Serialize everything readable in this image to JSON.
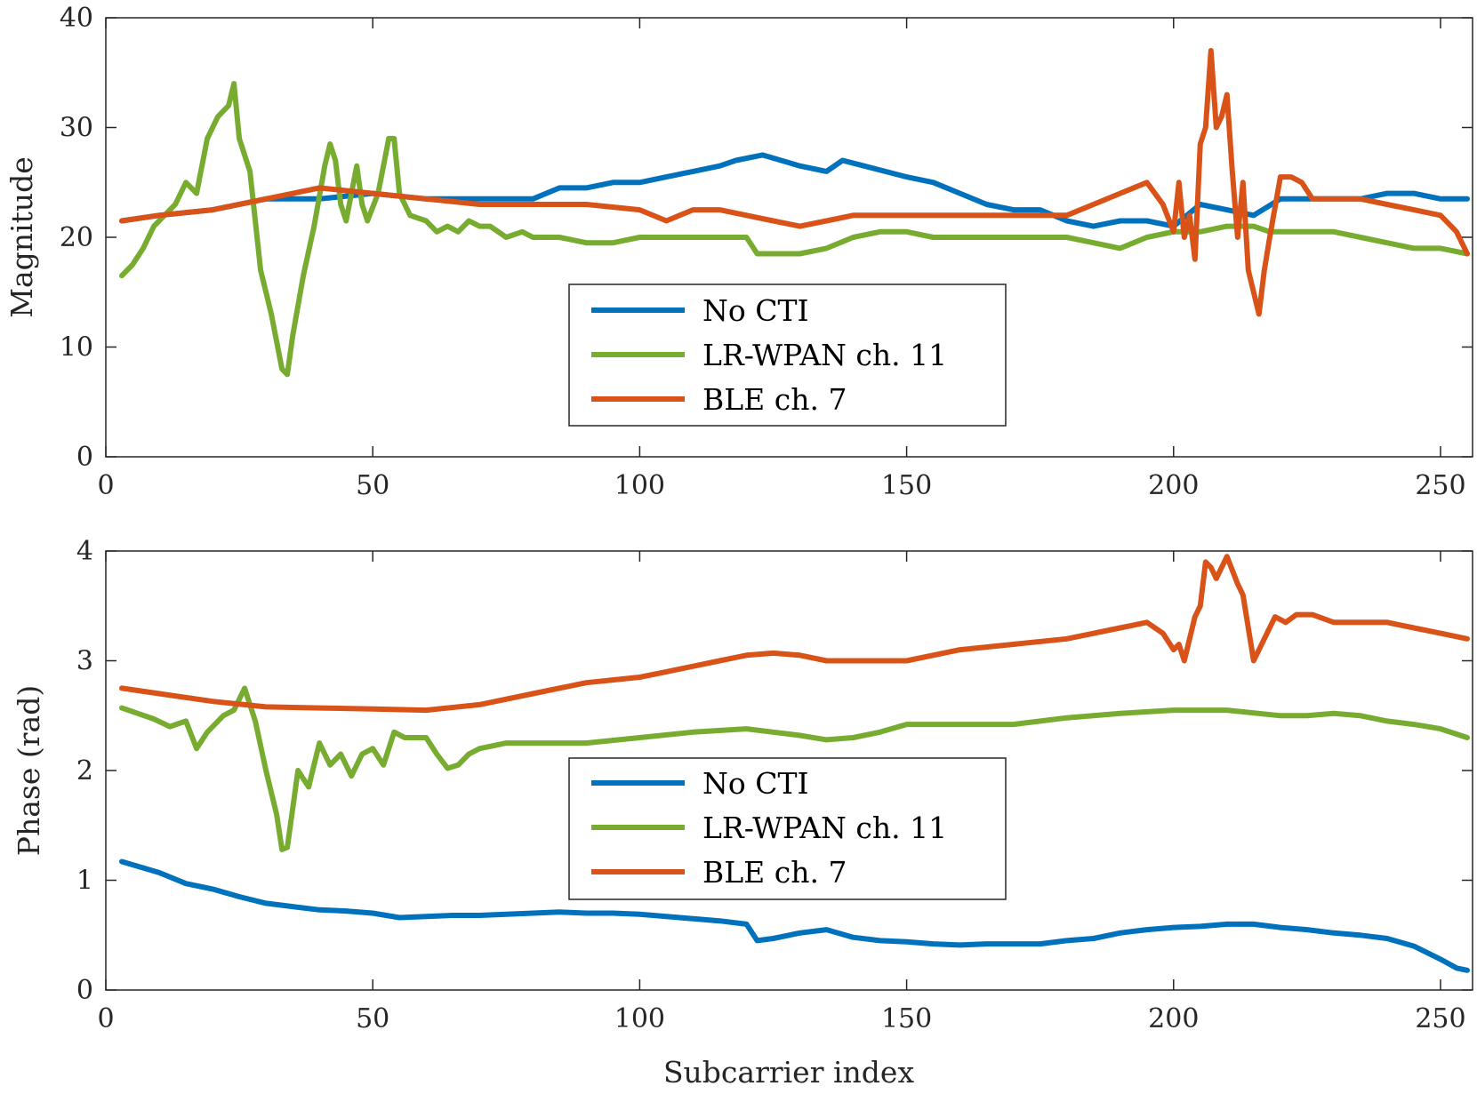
{
  "colors": {
    "no_cti": "#0072BD",
    "lr_wpan": "#77AC30",
    "ble": "#D95319"
  },
  "chart_data": [
    {
      "type": "line",
      "ylabel": "Magnitude",
      "xlabel": "",
      "xlim": [
        0,
        256
      ],
      "ylim": [
        0,
        40
      ],
      "xticks": [
        0,
        50,
        100,
        150,
        200,
        250
      ],
      "yticks": [
        0,
        10,
        20,
        30,
        40
      ],
      "xtick_labels": [
        "0",
        "50",
        "100",
        "150",
        "200",
        "250"
      ],
      "ytick_labels": [
        "0",
        "10",
        "20",
        "30",
        "40"
      ],
      "legend_position": "center-bottom",
      "series": [
        {
          "name": "No CTI",
          "color": "#0072BD",
          "x": [
            3,
            10,
            20,
            30,
            40,
            50,
            60,
            70,
            80,
            85,
            90,
            95,
            100,
            105,
            110,
            115,
            118,
            123,
            130,
            135,
            138,
            142,
            146,
            150,
            155,
            160,
            165,
            170,
            175,
            180,
            185,
            190,
            195,
            200,
            205,
            210,
            215,
            220,
            225,
            230,
            235,
            240,
            245,
            250,
            255
          ],
          "y": [
            21.5,
            22,
            22.5,
            23.5,
            23.5,
            24,
            23.5,
            23.5,
            23.5,
            24.5,
            24.5,
            25,
            25,
            25.5,
            26,
            26.5,
            27,
            27.5,
            26.5,
            26,
            27,
            26.5,
            26,
            25.5,
            25,
            24,
            23,
            22.5,
            22.5,
            21.5,
            21,
            21.5,
            21.5,
            21,
            23,
            22.5,
            22,
            23.5,
            23.5,
            23.5,
            23.5,
            24,
            24,
            23.5,
            23.5
          ]
        },
        {
          "name": "LR-WPAN ch. 11",
          "color": "#77AC30",
          "x": [
            3,
            5,
            7,
            9,
            11,
            13,
            15,
            17,
            19,
            21,
            23,
            24,
            25,
            27,
            29,
            31,
            33,
            34,
            35,
            37,
            39,
            41,
            42,
            43,
            44,
            45,
            47,
            48,
            49,
            51,
            53,
            54,
            55,
            57,
            60,
            62,
            64,
            66,
            68,
            70,
            72,
            75,
            78,
            80,
            85,
            90,
            95,
            100,
            110,
            120,
            122,
            125,
            130,
            135,
            140,
            145,
            150,
            155,
            160,
            165,
            170,
            175,
            180,
            185,
            190,
            195,
            200,
            205,
            210,
            215,
            218,
            222,
            226,
            230,
            235,
            240,
            245,
            250,
            255
          ],
          "y": [
            16.5,
            17.5,
            19,
            21,
            22,
            23,
            25,
            24,
            29,
            31,
            32,
            34,
            29,
            26,
            17,
            13,
            8,
            7.5,
            11,
            16.5,
            21,
            26.5,
            28.5,
            27,
            23,
            21.5,
            26.5,
            23,
            21.5,
            24,
            29,
            29,
            24,
            22,
            21.5,
            20.5,
            21,
            20.5,
            21.5,
            21,
            21,
            20,
            20.5,
            20,
            20,
            19.5,
            19.5,
            20,
            20,
            20,
            18.5,
            18.5,
            18.5,
            19,
            20,
            20.5,
            20.5,
            20,
            20,
            20,
            20,
            20,
            20,
            19.5,
            19,
            20,
            20.5,
            20.5,
            21,
            21,
            20.5,
            20.5,
            20.5,
            20.5,
            20,
            19.5,
            19,
            19,
            18.5
          ]
        },
        {
          "name": "BLE ch. 7",
          "color": "#D95319",
          "x": [
            3,
            10,
            20,
            30,
            40,
            50,
            60,
            70,
            80,
            90,
            100,
            105,
            110,
            115,
            120,
            125,
            130,
            135,
            140,
            145,
            150,
            155,
            160,
            165,
            170,
            175,
            180,
            185,
            190,
            195,
            198,
            200,
            201,
            202,
            203,
            204,
            205,
            206,
            207,
            208,
            209,
            210,
            211,
            212,
            213,
            214,
            215,
            216,
            217,
            218,
            220,
            222,
            224,
            226,
            230,
            235,
            240,
            245,
            250,
            253,
            255
          ],
          "y": [
            21.5,
            22,
            22.5,
            23.5,
            24.5,
            24,
            23.5,
            23,
            23,
            23,
            22.5,
            21.5,
            22.5,
            22.5,
            22,
            21.5,
            21,
            21.5,
            22,
            22,
            22,
            22,
            22,
            22,
            22,
            22,
            22,
            23,
            24,
            25,
            23,
            20.5,
            25,
            20,
            22,
            18,
            28.5,
            30,
            37,
            30,
            31,
            33,
            26,
            20,
            25,
            17,
            15,
            13,
            17,
            20,
            25.5,
            25.5,
            25,
            23.5,
            23.5,
            23.5,
            23,
            22.5,
            22,
            20.5,
            18.5
          ]
        }
      ]
    },
    {
      "type": "line",
      "ylabel": "Phase (rad)",
      "xlabel": "Subcarrier index",
      "xlim": [
        0,
        256
      ],
      "ylim": [
        0,
        4
      ],
      "xticks": [
        0,
        50,
        100,
        150,
        200,
        250
      ],
      "yticks": [
        0,
        1,
        2,
        3,
        4
      ],
      "xtick_labels": [
        "0",
        "50",
        "100",
        "150",
        "200",
        "250"
      ],
      "ytick_labels": [
        "0",
        "1",
        "2",
        "3",
        "4"
      ],
      "legend_position": "center-bottom",
      "series": [
        {
          "name": "No CTI",
          "color": "#0072BD",
          "x": [
            3,
            10,
            15,
            20,
            25,
            30,
            35,
            40,
            45,
            50,
            55,
            60,
            65,
            70,
            75,
            80,
            85,
            90,
            95,
            100,
            105,
            110,
            115,
            120,
            122,
            125,
            130,
            135,
            140,
            145,
            150,
            155,
            160,
            165,
            170,
            175,
            180,
            185,
            190,
            195,
            200,
            205,
            210,
            215,
            220,
            225,
            230,
            235,
            240,
            245,
            250,
            253,
            255
          ],
          "y": [
            1.17,
            1.07,
            0.97,
            0.92,
            0.85,
            0.79,
            0.76,
            0.73,
            0.72,
            0.7,
            0.66,
            0.67,
            0.68,
            0.68,
            0.69,
            0.7,
            0.71,
            0.7,
            0.7,
            0.69,
            0.67,
            0.65,
            0.63,
            0.6,
            0.45,
            0.47,
            0.52,
            0.55,
            0.48,
            0.45,
            0.44,
            0.42,
            0.41,
            0.42,
            0.42,
            0.42,
            0.45,
            0.47,
            0.52,
            0.55,
            0.57,
            0.58,
            0.6,
            0.6,
            0.57,
            0.55,
            0.52,
            0.5,
            0.47,
            0.4,
            0.28,
            0.2,
            0.18
          ]
        },
        {
          "name": "LR-WPAN ch. 11",
          "color": "#77AC30",
          "x": [
            3,
            6,
            9,
            12,
            15,
            17,
            19,
            22,
            24,
            26,
            28,
            30,
            32,
            33,
            34,
            36,
            38,
            40,
            42,
            44,
            46,
            48,
            50,
            52,
            54,
            56,
            58,
            60,
            62,
            64,
            66,
            68,
            70,
            75,
            80,
            90,
            100,
            110,
            120,
            125,
            130,
            135,
            140,
            145,
            150,
            160,
            170,
            180,
            190,
            200,
            210,
            220,
            225,
            230,
            235,
            240,
            245,
            250,
            255
          ],
          "y": [
            2.57,
            2.52,
            2.47,
            2.4,
            2.45,
            2.2,
            2.35,
            2.5,
            2.55,
            2.75,
            2.45,
            2.0,
            1.6,
            1.28,
            1.3,
            2.0,
            1.85,
            2.25,
            2.05,
            2.15,
            1.95,
            2.15,
            2.2,
            2.05,
            2.35,
            2.3,
            2.3,
            2.3,
            2.15,
            2.02,
            2.05,
            2.15,
            2.2,
            2.25,
            2.25,
            2.25,
            2.3,
            2.35,
            2.38,
            2.35,
            2.32,
            2.28,
            2.3,
            2.35,
            2.42,
            2.42,
            2.42,
            2.48,
            2.52,
            2.55,
            2.55,
            2.5,
            2.5,
            2.52,
            2.5,
            2.45,
            2.42,
            2.38,
            2.3
          ]
        },
        {
          "name": "BLE ch. 7",
          "color": "#D95319",
          "x": [
            3,
            10,
            20,
            30,
            40,
            50,
            60,
            70,
            80,
            90,
            100,
            105,
            110,
            115,
            120,
            125,
            130,
            135,
            140,
            150,
            160,
            170,
            180,
            190,
            195,
            198,
            200,
            201,
            202,
            204,
            205,
            206,
            207,
            208,
            210,
            212,
            213,
            215,
            217,
            219,
            221,
            223,
            226,
            230,
            235,
            240,
            245,
            250,
            255
          ],
          "y": [
            2.75,
            2.7,
            2.63,
            2.58,
            2.57,
            2.56,
            2.55,
            2.6,
            2.7,
            2.8,
            2.85,
            2.9,
            2.95,
            3.0,
            3.05,
            3.07,
            3.05,
            3.0,
            3.0,
            3.0,
            3.1,
            3.15,
            3.2,
            3.3,
            3.35,
            3.25,
            3.1,
            3.15,
            3.0,
            3.4,
            3.5,
            3.9,
            3.85,
            3.75,
            3.95,
            3.7,
            3.6,
            3.0,
            3.2,
            3.4,
            3.35,
            3.42,
            3.42,
            3.35,
            3.35,
            3.35,
            3.3,
            3.25,
            3.2
          ]
        }
      ]
    }
  ]
}
